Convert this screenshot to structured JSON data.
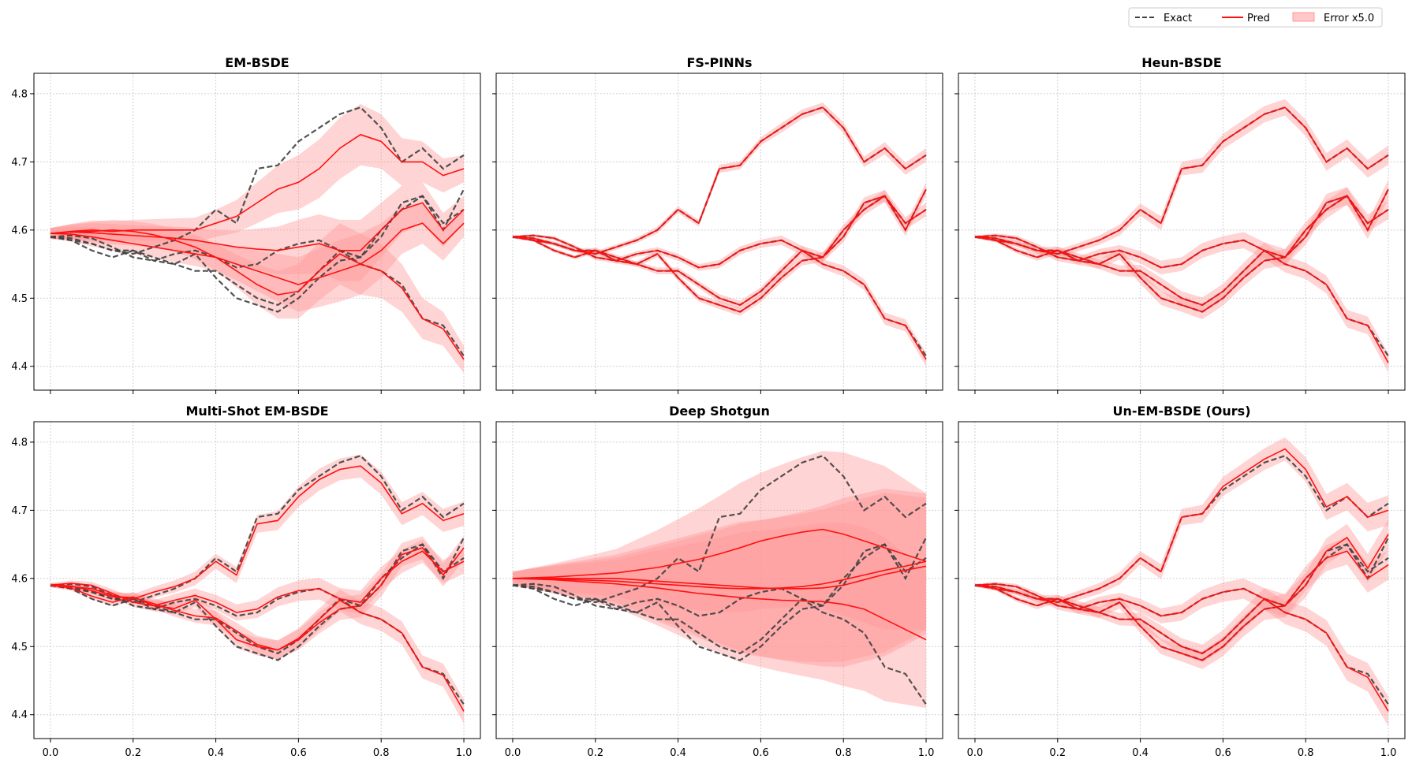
{
  "legend": {
    "placement": "top-right",
    "entries": [
      {
        "label": "Exact",
        "style": "dashed",
        "color": "#404040"
      },
      {
        "label": "Pred",
        "style": "solid",
        "color": "#ff0000"
      },
      {
        "label": "Error x5.0",
        "style": "band",
        "color": "#ffb3b3"
      }
    ]
  },
  "colors": {
    "exact": "#404040",
    "pred": "#ff1010",
    "band": "#ff9999",
    "grid": "#d0d0d0"
  },
  "chart_data": {
    "type": "line",
    "layout": "2x3 grid, shared axes",
    "xlim": [
      -0.04,
      1.04
    ],
    "ylim": [
      4.365,
      4.83
    ],
    "x_ticks": [
      0.0,
      0.2,
      0.4,
      0.6,
      0.8,
      1.0
    ],
    "x_tick_labels": [
      "0.0",
      "0.2",
      "0.4",
      "0.6",
      "0.8",
      "1.0"
    ],
    "y_ticks": [
      4.4,
      4.5,
      4.6,
      4.7,
      4.8
    ],
    "y_tick_labels": [
      "4.4",
      "4.5",
      "4.6",
      "4.7",
      "4.8"
    ],
    "grid": true,
    "x": [
      0,
      0.05,
      0.1,
      0.15,
      0.2,
      0.25,
      0.3,
      0.35,
      0.4,
      0.45,
      0.5,
      0.55,
      0.6,
      0.65,
      0.7,
      0.75,
      0.8,
      0.85,
      0.9,
      0.95,
      1.0
    ],
    "exact_paths": [
      {
        "name": "path 1",
        "values": [
          4.59,
          4.585,
          4.58,
          4.57,
          4.565,
          4.575,
          4.585,
          4.6,
          4.63,
          4.61,
          4.69,
          4.695,
          4.73,
          4.75,
          4.77,
          4.78,
          4.75,
          4.7,
          4.72,
          4.69,
          4.71
        ]
      },
      {
        "name": "path 2",
        "values": [
          4.59,
          4.592,
          4.588,
          4.575,
          4.56,
          4.555,
          4.565,
          4.57,
          4.56,
          4.545,
          4.55,
          4.57,
          4.58,
          4.585,
          4.57,
          4.56,
          4.6,
          4.63,
          4.65,
          4.61,
          4.63
        ]
      },
      {
        "name": "path 3",
        "values": [
          4.59,
          4.585,
          4.57,
          4.56,
          4.57,
          4.555,
          4.55,
          4.565,
          4.53,
          4.5,
          4.49,
          4.48,
          4.5,
          4.53,
          4.555,
          4.56,
          4.59,
          4.64,
          4.65,
          4.6,
          4.66
        ]
      },
      {
        "name": "path 4",
        "values": [
          4.59,
          4.588,
          4.58,
          4.57,
          4.57,
          4.56,
          4.55,
          4.54,
          4.54,
          4.52,
          4.5,
          4.49,
          4.51,
          4.54,
          4.57,
          4.55,
          4.54,
          4.52,
          4.47,
          4.46,
          4.415
        ]
      }
    ],
    "panels": [
      {
        "title": "EM-BSDE",
        "pred_paths": [
          [
            4.595,
            4.598,
            4.6,
            4.598,
            4.6,
            4.6,
            4.6,
            4.6,
            4.61,
            4.62,
            4.64,
            4.66,
            4.67,
            4.69,
            4.72,
            4.74,
            4.73,
            4.7,
            4.7,
            4.68,
            4.69
          ],
          [
            4.595,
            4.597,
            4.596,
            4.594,
            4.592,
            4.59,
            4.588,
            4.585,
            4.58,
            4.575,
            4.572,
            4.57,
            4.575,
            4.58,
            4.57,
            4.57,
            4.6,
            4.63,
            4.64,
            4.6,
            4.63
          ],
          [
            4.595,
            4.597,
            4.598,
            4.6,
            4.598,
            4.593,
            4.585,
            4.575,
            4.56,
            4.55,
            4.54,
            4.53,
            4.52,
            4.53,
            4.54,
            4.55,
            4.57,
            4.6,
            4.61,
            4.58,
            4.61
          ],
          [
            4.595,
            4.594,
            4.59,
            4.585,
            4.58,
            4.575,
            4.57,
            4.565,
            4.56,
            4.54,
            4.52,
            4.505,
            4.51,
            4.54,
            4.565,
            4.55,
            4.54,
            4.515,
            4.47,
            4.455,
            4.41
          ]
        ],
        "error_widths": [
          0.008,
          0.011,
          0.014,
          0.015,
          0.015,
          0.016,
          0.017,
          0.018,
          0.02,
          0.024,
          0.03,
          0.035,
          0.04,
          0.043,
          0.045,
          0.045,
          0.04,
          0.035,
          0.03,
          0.025,
          0.02
        ]
      },
      {
        "title": "FS-PINNs",
        "pred_paths": [
          [
            4.59,
            4.585,
            4.58,
            4.57,
            4.565,
            4.575,
            4.585,
            4.6,
            4.63,
            4.61,
            4.69,
            4.695,
            4.73,
            4.75,
            4.77,
            4.78,
            4.75,
            4.7,
            4.72,
            4.69,
            4.71
          ],
          [
            4.59,
            4.592,
            4.588,
            4.575,
            4.56,
            4.555,
            4.565,
            4.57,
            4.56,
            4.545,
            4.55,
            4.57,
            4.58,
            4.585,
            4.57,
            4.56,
            4.6,
            4.63,
            4.65,
            4.61,
            4.63
          ],
          [
            4.59,
            4.585,
            4.57,
            4.56,
            4.57,
            4.555,
            4.55,
            4.565,
            4.53,
            4.5,
            4.49,
            4.48,
            4.5,
            4.53,
            4.555,
            4.56,
            4.59,
            4.64,
            4.65,
            4.6,
            4.66
          ],
          [
            4.59,
            4.588,
            4.58,
            4.57,
            4.57,
            4.56,
            4.55,
            4.54,
            4.54,
            4.52,
            4.5,
            4.49,
            4.51,
            4.54,
            4.57,
            4.55,
            4.54,
            4.52,
            4.47,
            4.46,
            4.41
          ]
        ],
        "error_widths": [
          0.002,
          0.002,
          0.003,
          0.003,
          0.004,
          0.004,
          0.004,
          0.005,
          0.005,
          0.005,
          0.006,
          0.006,
          0.006,
          0.007,
          0.007,
          0.007,
          0.008,
          0.008,
          0.009,
          0.009,
          0.01
        ]
      },
      {
        "title": "Heun-BSDE",
        "pred_paths": [
          [
            4.59,
            4.585,
            4.58,
            4.57,
            4.565,
            4.575,
            4.585,
            4.6,
            4.63,
            4.61,
            4.69,
            4.695,
            4.73,
            4.75,
            4.77,
            4.78,
            4.75,
            4.7,
            4.72,
            4.69,
            4.71
          ],
          [
            4.59,
            4.592,
            4.588,
            4.575,
            4.56,
            4.555,
            4.565,
            4.57,
            4.56,
            4.545,
            4.55,
            4.57,
            4.58,
            4.585,
            4.57,
            4.56,
            4.6,
            4.63,
            4.65,
            4.61,
            4.63
          ],
          [
            4.59,
            4.585,
            4.57,
            4.56,
            4.57,
            4.555,
            4.55,
            4.565,
            4.53,
            4.5,
            4.49,
            4.48,
            4.5,
            4.53,
            4.555,
            4.56,
            4.59,
            4.64,
            4.65,
            4.6,
            4.66
          ],
          [
            4.59,
            4.588,
            4.58,
            4.57,
            4.57,
            4.56,
            4.55,
            4.54,
            4.54,
            4.52,
            4.5,
            4.49,
            4.51,
            4.54,
            4.57,
            4.55,
            4.54,
            4.52,
            4.47,
            4.46,
            4.405
          ]
        ],
        "error_widths": [
          0.002,
          0.003,
          0.004,
          0.005,
          0.006,
          0.006,
          0.007,
          0.008,
          0.009,
          0.01,
          0.01,
          0.011,
          0.011,
          0.012,
          0.012,
          0.012,
          0.012,
          0.013,
          0.013,
          0.013,
          0.014
        ]
      },
      {
        "title": "Multi-Shot EM-BSDE",
        "pred_paths": [
          [
            4.59,
            4.588,
            4.585,
            4.575,
            4.57,
            4.58,
            4.588,
            4.6,
            4.625,
            4.605,
            4.68,
            4.685,
            4.72,
            4.745,
            4.76,
            4.765,
            4.74,
            4.695,
            4.71,
            4.685,
            4.695
          ],
          [
            4.59,
            4.593,
            4.59,
            4.578,
            4.565,
            4.56,
            4.568,
            4.575,
            4.565,
            4.55,
            4.555,
            4.573,
            4.582,
            4.585,
            4.57,
            4.565,
            4.6,
            4.625,
            4.64,
            4.61,
            4.625
          ],
          [
            4.59,
            4.586,
            4.574,
            4.565,
            4.573,
            4.56,
            4.556,
            4.568,
            4.54,
            4.51,
            4.5,
            4.495,
            4.51,
            4.535,
            4.555,
            4.56,
            4.59,
            4.635,
            4.645,
            4.605,
            4.645
          ],
          [
            4.59,
            4.589,
            4.582,
            4.573,
            4.572,
            4.563,
            4.553,
            4.545,
            4.542,
            4.523,
            4.503,
            4.495,
            4.512,
            4.54,
            4.568,
            4.55,
            4.54,
            4.52,
            4.47,
            4.458,
            4.405
          ]
        ],
        "error_widths": [
          0.003,
          0.004,
          0.005,
          0.006,
          0.007,
          0.008,
          0.009,
          0.01,
          0.011,
          0.012,
          0.013,
          0.014,
          0.015,
          0.016,
          0.016,
          0.017,
          0.017,
          0.017,
          0.017,
          0.017,
          0.018
        ]
      },
      {
        "title": "Deep Shotgun",
        "pred_paths": [
          [
            4.6,
            4.601,
            4.602,
            4.604,
            4.606,
            4.608,
            4.612,
            4.616,
            4.622,
            4.628,
            4.636,
            4.645,
            4.655,
            4.662,
            4.668,
            4.672,
            4.665,
            4.655,
            4.645,
            4.635,
            4.625
          ],
          [
            4.6,
            4.6,
            4.6,
            4.6,
            4.6,
            4.6,
            4.598,
            4.596,
            4.594,
            4.592,
            4.59,
            4.588,
            4.586,
            4.585,
            4.585,
            4.586,
            4.59,
            4.598,
            4.606,
            4.612,
            4.618
          ],
          [
            4.6,
            4.6,
            4.599,
            4.598,
            4.597,
            4.596,
            4.594,
            4.592,
            4.59,
            4.588,
            4.586,
            4.585,
            4.585,
            4.586,
            4.588,
            4.592,
            4.598,
            4.605,
            4.612,
            4.618,
            4.625
          ],
          [
            4.6,
            4.599,
            4.598,
            4.596,
            4.594,
            4.592,
            4.589,
            4.586,
            4.582,
            4.578,
            4.575,
            4.572,
            4.57,
            4.568,
            4.567,
            4.566,
            4.562,
            4.555,
            4.54,
            4.525,
            4.51
          ]
        ],
        "error_widths": [
          0.01,
          0.015,
          0.02,
          0.025,
          0.03,
          0.035,
          0.045,
          0.055,
          0.065,
          0.075,
          0.085,
          0.095,
          0.1,
          0.105,
          0.11,
          0.115,
          0.12,
          0.12,
          0.12,
          0.11,
          0.1
        ]
      },
      {
        "title": "Un-EM-BSDE (Ours)",
        "pred_paths": [
          [
            4.59,
            4.585,
            4.58,
            4.57,
            4.565,
            4.575,
            4.585,
            4.6,
            4.63,
            4.61,
            4.69,
            4.695,
            4.735,
            4.755,
            4.775,
            4.79,
            4.76,
            4.705,
            4.72,
            4.69,
            4.7
          ],
          [
            4.59,
            4.592,
            4.588,
            4.575,
            4.56,
            4.555,
            4.565,
            4.57,
            4.56,
            4.545,
            4.55,
            4.57,
            4.58,
            4.585,
            4.57,
            4.56,
            4.6,
            4.63,
            4.64,
            4.6,
            4.62
          ],
          [
            4.59,
            4.585,
            4.57,
            4.56,
            4.57,
            4.555,
            4.55,
            4.565,
            4.53,
            4.5,
            4.49,
            4.48,
            4.5,
            4.53,
            4.555,
            4.56,
            4.59,
            4.64,
            4.66,
            4.615,
            4.665
          ],
          [
            4.59,
            4.588,
            4.58,
            4.57,
            4.57,
            4.56,
            4.55,
            4.54,
            4.54,
            4.52,
            4.5,
            4.49,
            4.51,
            4.54,
            4.57,
            4.55,
            4.54,
            4.52,
            4.47,
            4.455,
            4.405
          ]
        ],
        "error_widths": [
          0.002,
          0.003,
          0.004,
          0.005,
          0.006,
          0.007,
          0.008,
          0.009,
          0.01,
          0.011,
          0.012,
          0.013,
          0.014,
          0.015,
          0.016,
          0.017,
          0.018,
          0.019,
          0.02,
          0.021,
          0.022
        ]
      }
    ]
  }
}
